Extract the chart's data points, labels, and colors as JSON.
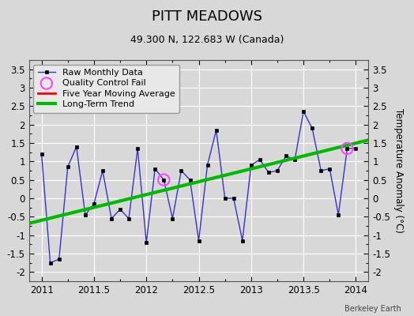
{
  "title": "PITT MEADOWS",
  "subtitle": "49.300 N, 122.683 W (Canada)",
  "watermark": "Berkeley Earth",
  "ylabel": "Temperature Anomaly (°C)",
  "xlim": [
    2010.88,
    2014.12
  ],
  "ylim": [
    -2.25,
    3.75
  ],
  "yticks": [
    -2,
    -1.5,
    -1,
    -0.5,
    0,
    0.5,
    1,
    1.5,
    2,
    2.5,
    3,
    3.5
  ],
  "xticks": [
    2011,
    2011.5,
    2012,
    2012.5,
    2013,
    2013.5,
    2014
  ],
  "background_color": "#d8d8d8",
  "plot_bg_color": "#d8d8d8",
  "grid_color": "#ffffff",
  "raw_monthly": {
    "x": [
      2011.0,
      2011.083,
      2011.167,
      2011.25,
      2011.333,
      2011.417,
      2011.5,
      2011.583,
      2011.667,
      2011.75,
      2011.833,
      2011.917,
      2012.0,
      2012.083,
      2012.167,
      2012.25,
      2012.333,
      2012.417,
      2012.5,
      2012.583,
      2012.667,
      2012.75,
      2012.833,
      2012.917,
      2013.0,
      2013.083,
      2013.167,
      2013.25,
      2013.333,
      2013.417,
      2013.5,
      2013.583,
      2013.667,
      2013.75,
      2013.833,
      2013.917,
      2014.0
    ],
    "y": [
      1.2,
      -1.75,
      -1.65,
      0.85,
      1.4,
      -0.45,
      -0.15,
      0.75,
      -0.55,
      -0.3,
      -0.55,
      1.35,
      -1.2,
      0.8,
      0.5,
      -0.55,
      0.75,
      0.5,
      -1.15,
      0.9,
      1.85,
      0.0,
      0.0,
      -1.15,
      0.9,
      1.05,
      0.7,
      0.75,
      1.15,
      1.05,
      2.35,
      1.9,
      0.75,
      0.8,
      -0.45,
      1.35,
      1.35
    ],
    "color": "#3333cc",
    "linewidth": 1.0,
    "markersize": 3.5,
    "markercolor": "#000000"
  },
  "qc_fail": {
    "x": [
      2012.167,
      2013.917
    ],
    "y": [
      0.5,
      1.35
    ],
    "color": "#ff44ff",
    "markersize": 6
  },
  "moving_avg": {
    "color": "#ff0000",
    "linewidth": 2
  },
  "trend": {
    "x": [
      2010.88,
      2014.12
    ],
    "y": [
      -0.68,
      1.58
    ],
    "color": "#00bb00",
    "linewidth": 3
  },
  "title_fontsize": 13,
  "subtitle_fontsize": 9,
  "tick_fontsize": 8.5,
  "ylabel_fontsize": 8.5,
  "legend_fontsize": 8
}
